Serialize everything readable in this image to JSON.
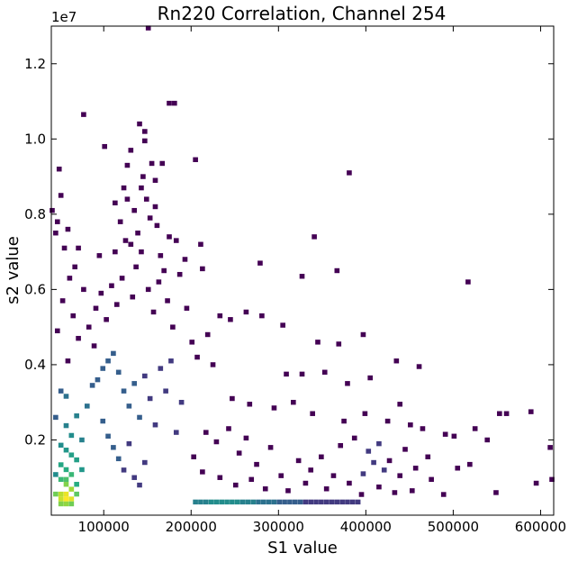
{
  "chart_data": {
    "type": "heatmap",
    "title": "Rn220 Correlation, Channel 254",
    "xlabel": "S1 value",
    "ylabel": "s2 value",
    "y_offset_label": "1e7",
    "xlim": [
      40000,
      615000
    ],
    "ylim": [
      0,
      13000000
    ],
    "x_ticks": [
      100000,
      200000,
      300000,
      400000,
      500000,
      600000
    ],
    "x_tick_labels": [
      "100000",
      "200000",
      "300000",
      "400000",
      "500000",
      "600000"
    ],
    "y_ticks": [
      2000000,
      4000000,
      6000000,
      8000000,
      10000000,
      12000000
    ],
    "y_tick_labels": [
      "0.2",
      "0.4",
      "0.6",
      "0.8",
      "1.0",
      "1.2"
    ],
    "grid": false,
    "colormap": "viridis",
    "bin_width_x": 5800,
    "bin_width_y": 130000,
    "cells": [
      [
        57000,
        430000,
        40
      ],
      [
        51000,
        430000,
        30
      ],
      [
        63000,
        430000,
        34
      ],
      [
        57000,
        560000,
        36
      ],
      [
        51000,
        560000,
        28
      ],
      [
        63000,
        690000,
        24
      ],
      [
        57000,
        820000,
        20
      ],
      [
        45000,
        560000,
        18
      ],
      [
        69000,
        560000,
        16
      ],
      [
        57000,
        300000,
        22
      ],
      [
        51000,
        300000,
        20
      ],
      [
        63000,
        300000,
        18
      ],
      [
        57000,
        950000,
        14
      ],
      [
        51000,
        950000,
        12
      ],
      [
        63000,
        1080000,
        12
      ],
      [
        69000,
        820000,
        10
      ],
      [
        57000,
        1210000,
        10
      ],
      [
        51000,
        1340000,
        9
      ],
      [
        69000,
        1470000,
        8
      ],
      [
        63000,
        1600000,
        8
      ],
      [
        57000,
        1730000,
        7
      ],
      [
        75000,
        1210000,
        7
      ],
      [
        51000,
        1860000,
        6
      ],
      [
        63000,
        2120000,
        6
      ],
      [
        45000,
        1080000,
        6
      ],
      [
        57000,
        2380000,
        5
      ],
      [
        69000,
        2640000,
        5
      ],
      [
        75000,
        2000000,
        5
      ],
      [
        81000,
        2900000,
        4
      ],
      [
        57000,
        3160000,
        4
      ],
      [
        45000,
        2600000,
        3
      ],
      [
        51000,
        3300000,
        3
      ],
      [
        87000,
        3450000,
        3
      ],
      [
        93000,
        3600000,
        3
      ],
      [
        99000,
        3900000,
        3
      ],
      [
        105000,
        4100000,
        3
      ],
      [
        111000,
        4300000,
        3
      ],
      [
        117000,
        3800000,
        3
      ],
      [
        123000,
        3300000,
        3
      ],
      [
        129000,
        2900000,
        3
      ],
      [
        135000,
        3500000,
        3
      ],
      [
        141000,
        2600000,
        3
      ],
      [
        147000,
        3700000,
        2
      ],
      [
        153000,
        3100000,
        2
      ],
      [
        159000,
        2400000,
        2
      ],
      [
        165000,
        3900000,
        2
      ],
      [
        171000,
        3300000,
        2
      ],
      [
        177000,
        4100000,
        2
      ],
      [
        183000,
        2200000,
        2
      ],
      [
        189000,
        3000000,
        2
      ],
      [
        99000,
        2500000,
        3
      ],
      [
        105000,
        2100000,
        3
      ],
      [
        111000,
        1800000,
        3
      ],
      [
        117000,
        1500000,
        3
      ],
      [
        123000,
        1200000,
        2
      ],
      [
        129000,
        1900000,
        2
      ],
      [
        135000,
        1000000,
        2
      ],
      [
        141000,
        800000,
        2
      ],
      [
        147000,
        1400000,
        2
      ],
      [
        205000,
        350000,
        5
      ],
      [
        211000,
        350000,
        5
      ],
      [
        217000,
        350000,
        5
      ],
      [
        223000,
        350000,
        6
      ],
      [
        229000,
        350000,
        6
      ],
      [
        235000,
        350000,
        6
      ],
      [
        241000,
        350000,
        6
      ],
      [
        247000,
        350000,
        6
      ],
      [
        253000,
        350000,
        6
      ],
      [
        259000,
        350000,
        5
      ],
      [
        265000,
        350000,
        5
      ],
      [
        271000,
        350000,
        5
      ],
      [
        277000,
        350000,
        4
      ],
      [
        283000,
        350000,
        4
      ],
      [
        289000,
        350000,
        4
      ],
      [
        295000,
        350000,
        4
      ],
      [
        301000,
        350000,
        3
      ],
      [
        307000,
        350000,
        3
      ],
      [
        313000,
        350000,
        3
      ],
      [
        319000,
        350000,
        3
      ],
      [
        325000,
        350000,
        3
      ],
      [
        331000,
        350000,
        2
      ],
      [
        337000,
        350000,
        2
      ],
      [
        343000,
        350000,
        2
      ],
      [
        349000,
        350000,
        2
      ],
      [
        355000,
        350000,
        2
      ],
      [
        361000,
        350000,
        2
      ],
      [
        367000,
        350000,
        2
      ],
      [
        373000,
        350000,
        2
      ],
      [
        379000,
        350000,
        2
      ],
      [
        385000,
        350000,
        2
      ],
      [
        391000,
        350000,
        2
      ],
      [
        403000,
        1700000,
        2
      ],
      [
        409000,
        1400000,
        2
      ],
      [
        415000,
        1900000,
        2
      ],
      [
        421000,
        1200000,
        2
      ],
      [
        397000,
        1100000,
        2
      ],
      [
        151000,
        12950000,
        1
      ],
      [
        77000,
        10650000,
        1
      ],
      [
        141000,
        10400000,
        1
      ],
      [
        147000,
        10200000,
        1
      ],
      [
        175000,
        10950000,
        1
      ],
      [
        181000,
        10950000,
        1
      ],
      [
        147000,
        9950000,
        1
      ],
      [
        101000,
        9800000,
        1
      ],
      [
        131000,
        9700000,
        1
      ],
      [
        127000,
        9300000,
        1
      ],
      [
        167000,
        9350000,
        1
      ],
      [
        155000,
        9350000,
        1
      ],
      [
        205000,
        9450000,
        1
      ],
      [
        49000,
        9200000,
        1
      ],
      [
        381000,
        9100000,
        1
      ],
      [
        123000,
        8700000,
        1
      ],
      [
        143000,
        8700000,
        1
      ],
      [
        149000,
        8400000,
        1
      ],
      [
        159000,
        8200000,
        1
      ],
      [
        51000,
        8500000,
        1
      ],
      [
        41000,
        8100000,
        1
      ],
      [
        45000,
        7500000,
        1
      ],
      [
        341000,
        7400000,
        1
      ],
      [
        175000,
        7400000,
        1
      ],
      [
        119000,
        7800000,
        1
      ],
      [
        125000,
        7300000,
        1
      ],
      [
        139000,
        7500000,
        1
      ],
      [
        161000,
        7700000,
        1
      ],
      [
        183000,
        7300000,
        1
      ],
      [
        211000,
        7200000,
        1
      ],
      [
        71000,
        7100000,
        1
      ],
      [
        55000,
        7100000,
        1
      ],
      [
        279000,
        6700000,
        1
      ],
      [
        193000,
        6800000,
        1
      ],
      [
        213000,
        6550000,
        1
      ],
      [
        327000,
        6350000,
        1
      ],
      [
        367000,
        6500000,
        1
      ],
      [
        517000,
        6200000,
        1
      ],
      [
        187000,
        6400000,
        1
      ],
      [
        169000,
        6500000,
        1
      ],
      [
        233000,
        5300000,
        1
      ],
      [
        245000,
        5200000,
        1
      ],
      [
        263000,
        5400000,
        1
      ],
      [
        281000,
        5300000,
        1
      ],
      [
        305000,
        5050000,
        1
      ],
      [
        345000,
        4600000,
        1
      ],
      [
        369000,
        4550000,
        1
      ],
      [
        397000,
        4800000,
        1
      ],
      [
        435000,
        4100000,
        1
      ],
      [
        461000,
        3950000,
        1
      ],
      [
        309000,
        3750000,
        1
      ],
      [
        327000,
        3750000,
        1
      ],
      [
        353000,
        3800000,
        1
      ],
      [
        379000,
        3500000,
        1
      ],
      [
        405000,
        3650000,
        1
      ],
      [
        247000,
        3100000,
        1
      ],
      [
        267000,
        2950000,
        1
      ],
      [
        295000,
        2850000,
        1
      ],
      [
        317000,
        3000000,
        1
      ],
      [
        339000,
        2700000,
        1
      ],
      [
        375000,
        2500000,
        1
      ],
      [
        399000,
        2700000,
        1
      ],
      [
        425000,
        2500000,
        1
      ],
      [
        439000,
        2950000,
        1
      ],
      [
        451000,
        2400000,
        1
      ],
      [
        465000,
        2300000,
        1
      ],
      [
        491000,
        2150000,
        1
      ],
      [
        501000,
        2100000,
        1
      ],
      [
        525000,
        2300000,
        1
      ],
      [
        539000,
        2000000,
        1
      ],
      [
        561000,
        2700000,
        1
      ],
      [
        589000,
        2750000,
        1
      ],
      [
        553000,
        2700000,
        1
      ],
      [
        505000,
        1250000,
        1
      ],
      [
        519000,
        1350000,
        1
      ],
      [
        475000,
        950000,
        1
      ],
      [
        453000,
        650000,
        1
      ],
      [
        489000,
        550000,
        1
      ],
      [
        549000,
        600000,
        1
      ],
      [
        595000,
        850000,
        1
      ],
      [
        613000,
        950000,
        1
      ],
      [
        611000,
        1800000,
        1
      ],
      [
        445000,
        1750000,
        1
      ],
      [
        457000,
        1250000,
        1
      ],
      [
        471000,
        1550000,
        1
      ],
      [
        439000,
        1050000,
        1
      ],
      [
        427000,
        1450000,
        1
      ],
      [
        255000,
        1650000,
        1
      ],
      [
        275000,
        1350000,
        1
      ],
      [
        291000,
        1800000,
        1
      ],
      [
        303000,
        1050000,
        1
      ],
      [
        323000,
        1450000,
        1
      ],
      [
        337000,
        1200000,
        1
      ],
      [
        349000,
        1550000,
        1
      ],
      [
        363000,
        1050000,
        1
      ],
      [
        371000,
        1850000,
        1
      ],
      [
        387000,
        2050000,
        1
      ],
      [
        263000,
        2050000,
        1
      ],
      [
        243000,
        2300000,
        1
      ],
      [
        229000,
        1950000,
        1
      ],
      [
        217000,
        2200000,
        1
      ],
      [
        203000,
        1550000,
        1
      ],
      [
        213000,
        1150000,
        1
      ],
      [
        233000,
        1000000,
        1
      ],
      [
        251000,
        800000,
        1
      ],
      [
        269000,
        950000,
        1
      ],
      [
        285000,
        700000,
        1
      ],
      [
        311000,
        650000,
        1
      ],
      [
        331000,
        850000,
        1
      ],
      [
        355000,
        700000,
        1
      ],
      [
        381000,
        850000,
        1
      ],
      [
        395000,
        550000,
        1
      ],
      [
        415000,
        750000,
        1
      ],
      [
        433000,
        600000,
        1
      ],
      [
        91000,
        5500000,
        1
      ],
      [
        97000,
        5900000,
        1
      ],
      [
        103000,
        5200000,
        1
      ],
      [
        109000,
        6100000,
        1
      ],
      [
        115000,
        5600000,
        1
      ],
      [
        121000,
        6300000,
        1
      ],
      [
        133000,
        5800000,
        1
      ],
      [
        137000,
        6600000,
        1
      ],
      [
        151000,
        6000000,
        1
      ],
      [
        157000,
        5400000,
        1
      ],
      [
        163000,
        6200000,
        1
      ],
      [
        173000,
        5700000,
        1
      ],
      [
        179000,
        5000000,
        1
      ],
      [
        195000,
        5500000,
        1
      ],
      [
        201000,
        4600000,
        1
      ],
      [
        207000,
        4200000,
        1
      ],
      [
        219000,
        4800000,
        1
      ],
      [
        225000,
        4000000,
        1
      ],
      [
        65000,
        5300000,
        1
      ],
      [
        71000,
        4700000,
        1
      ],
      [
        59000,
        4100000,
        1
      ],
      [
        47000,
        4900000,
        1
      ],
      [
        53000,
        5700000,
        1
      ],
      [
        61000,
        6300000,
        1
      ],
      [
        67000,
        6600000,
        1
      ],
      [
        77000,
        6000000,
        1
      ],
      [
        83000,
        5000000,
        1
      ],
      [
        89000,
        4500000,
        1
      ],
      [
        95000,
        6900000,
        1
      ],
      [
        113000,
        7000000,
        1
      ],
      [
        131000,
        7200000,
        1
      ],
      [
        143000,
        7000000,
        1
      ],
      [
        153000,
        7900000,
        1
      ],
      [
        165000,
        6900000,
        1
      ],
      [
        135000,
        8100000,
        1
      ],
      [
        113000,
        8300000,
        1
      ],
      [
        127000,
        8400000,
        1
      ],
      [
        145000,
        9000000,
        1
      ],
      [
        159000,
        8900000,
        1
      ],
      [
        47000,
        7800000,
        1
      ],
      [
        59000,
        7600000,
        1
      ]
    ]
  }
}
